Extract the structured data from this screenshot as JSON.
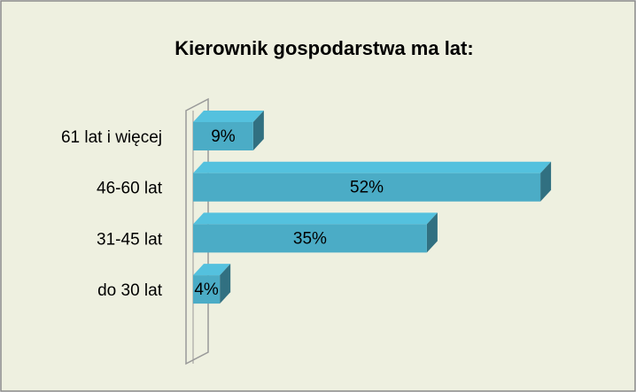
{
  "chart_data": {
    "type": "bar",
    "orientation": "horizontal",
    "title": "Kierownik gospodarstwa ma lat:",
    "categories": [
      "61 lat i więcej",
      "46-60 lat",
      "31-45 lat",
      "do 30 lat"
    ],
    "values": [
      9,
      52,
      35,
      4
    ],
    "value_labels": [
      "9%",
      "52%",
      "35%",
      "4%"
    ],
    "color": "#4bacc6"
  }
}
